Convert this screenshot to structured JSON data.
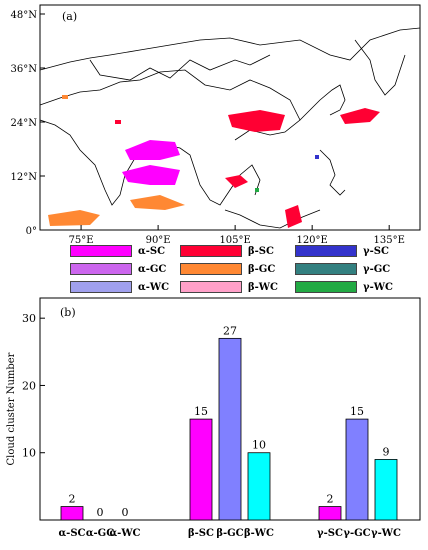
{
  "map": {
    "panel_label": "(a)",
    "lat_ticks": [
      "0°",
      "12°N",
      "24°N",
      "36°N",
      "48°N"
    ],
    "lon_ticks": [
      "75°E",
      "90°E",
      "105°E",
      "120°E",
      "135°E"
    ],
    "lat_values": [
      0,
      12,
      24,
      36,
      48
    ],
    "lon_values": [
      75,
      90,
      105,
      120,
      135
    ],
    "lat_range": [
      0,
      50
    ],
    "lon_range": [
      67,
      141
    ]
  },
  "legend": {
    "items": [
      {
        "label": "α-SC",
        "color": "#ff00ff"
      },
      {
        "label": "β-SC",
        "color": "#ff0033"
      },
      {
        "label": "γ-SC",
        "color": "#3333cc"
      },
      {
        "label": "α-GC",
        "color": "#cc66ee"
      },
      {
        "label": "β-GC",
        "color": "#ff8833"
      },
      {
        "label": "γ-GC",
        "color": "#338080"
      },
      {
        "label": "α-WC",
        "color": "#a0a0ee"
      },
      {
        "label": "β-WC",
        "color": "#ffa0c8"
      },
      {
        "label": "γ-WC",
        "color": "#22aa44"
      }
    ]
  },
  "chart_data": {
    "type": "bar",
    "panel_label": "(b)",
    "ylabel": "Cloud cluster Number",
    "ylim": [
      0,
      33
    ],
    "yticks": [
      10,
      20,
      30
    ],
    "categories": [
      "α-SC",
      "α-GC",
      "α-WC",
      "β-SC",
      "β-GC",
      "β-WC",
      "γ-SC",
      "γ-GC",
      "γ-WC"
    ],
    "values": [
      2,
      0,
      0,
      15,
      27,
      10,
      2,
      15,
      9
    ],
    "colors": [
      "#ff00ff",
      "#8080ff",
      "#00ffff",
      "#ff00ff",
      "#8080ff",
      "#00ffff",
      "#ff00ff",
      "#8080ff",
      "#00ffff"
    ],
    "grid": false
  }
}
